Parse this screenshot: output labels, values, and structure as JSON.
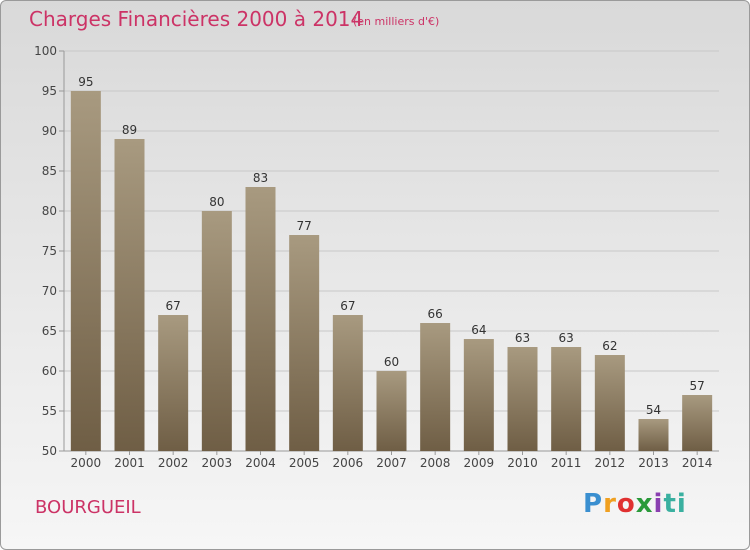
{
  "header": {
    "title": "Charges Financières 2000 à 2014",
    "subtitle": "(en milliers d'€)"
  },
  "footer": {
    "commune": "BOURGUEIL",
    "logo_text": "Proxiti"
  },
  "colors": {
    "title": "#cc3366",
    "bar_top": "#a89a80",
    "bar_bottom": "#6f5e45"
  },
  "chart_data": {
    "type": "bar",
    "title": "Charges Financières 2000 à 2014",
    "subtitle": "(en milliers d'€)",
    "categories": [
      "2000",
      "2001",
      "2002",
      "2003",
      "2004",
      "2005",
      "2006",
      "2007",
      "2008",
      "2009",
      "2010",
      "2011",
      "2012",
      "2013",
      "2014"
    ],
    "values": [
      95,
      89,
      67,
      80,
      83,
      77,
      67,
      60,
      66,
      64,
      63,
      63,
      62,
      54,
      57
    ],
    "ylim": [
      50,
      100
    ],
    "yticks": [
      50,
      55,
      60,
      65,
      70,
      75,
      80,
      85,
      90,
      95,
      100
    ],
    "grid": true,
    "xlabel": "",
    "ylabel": ""
  }
}
